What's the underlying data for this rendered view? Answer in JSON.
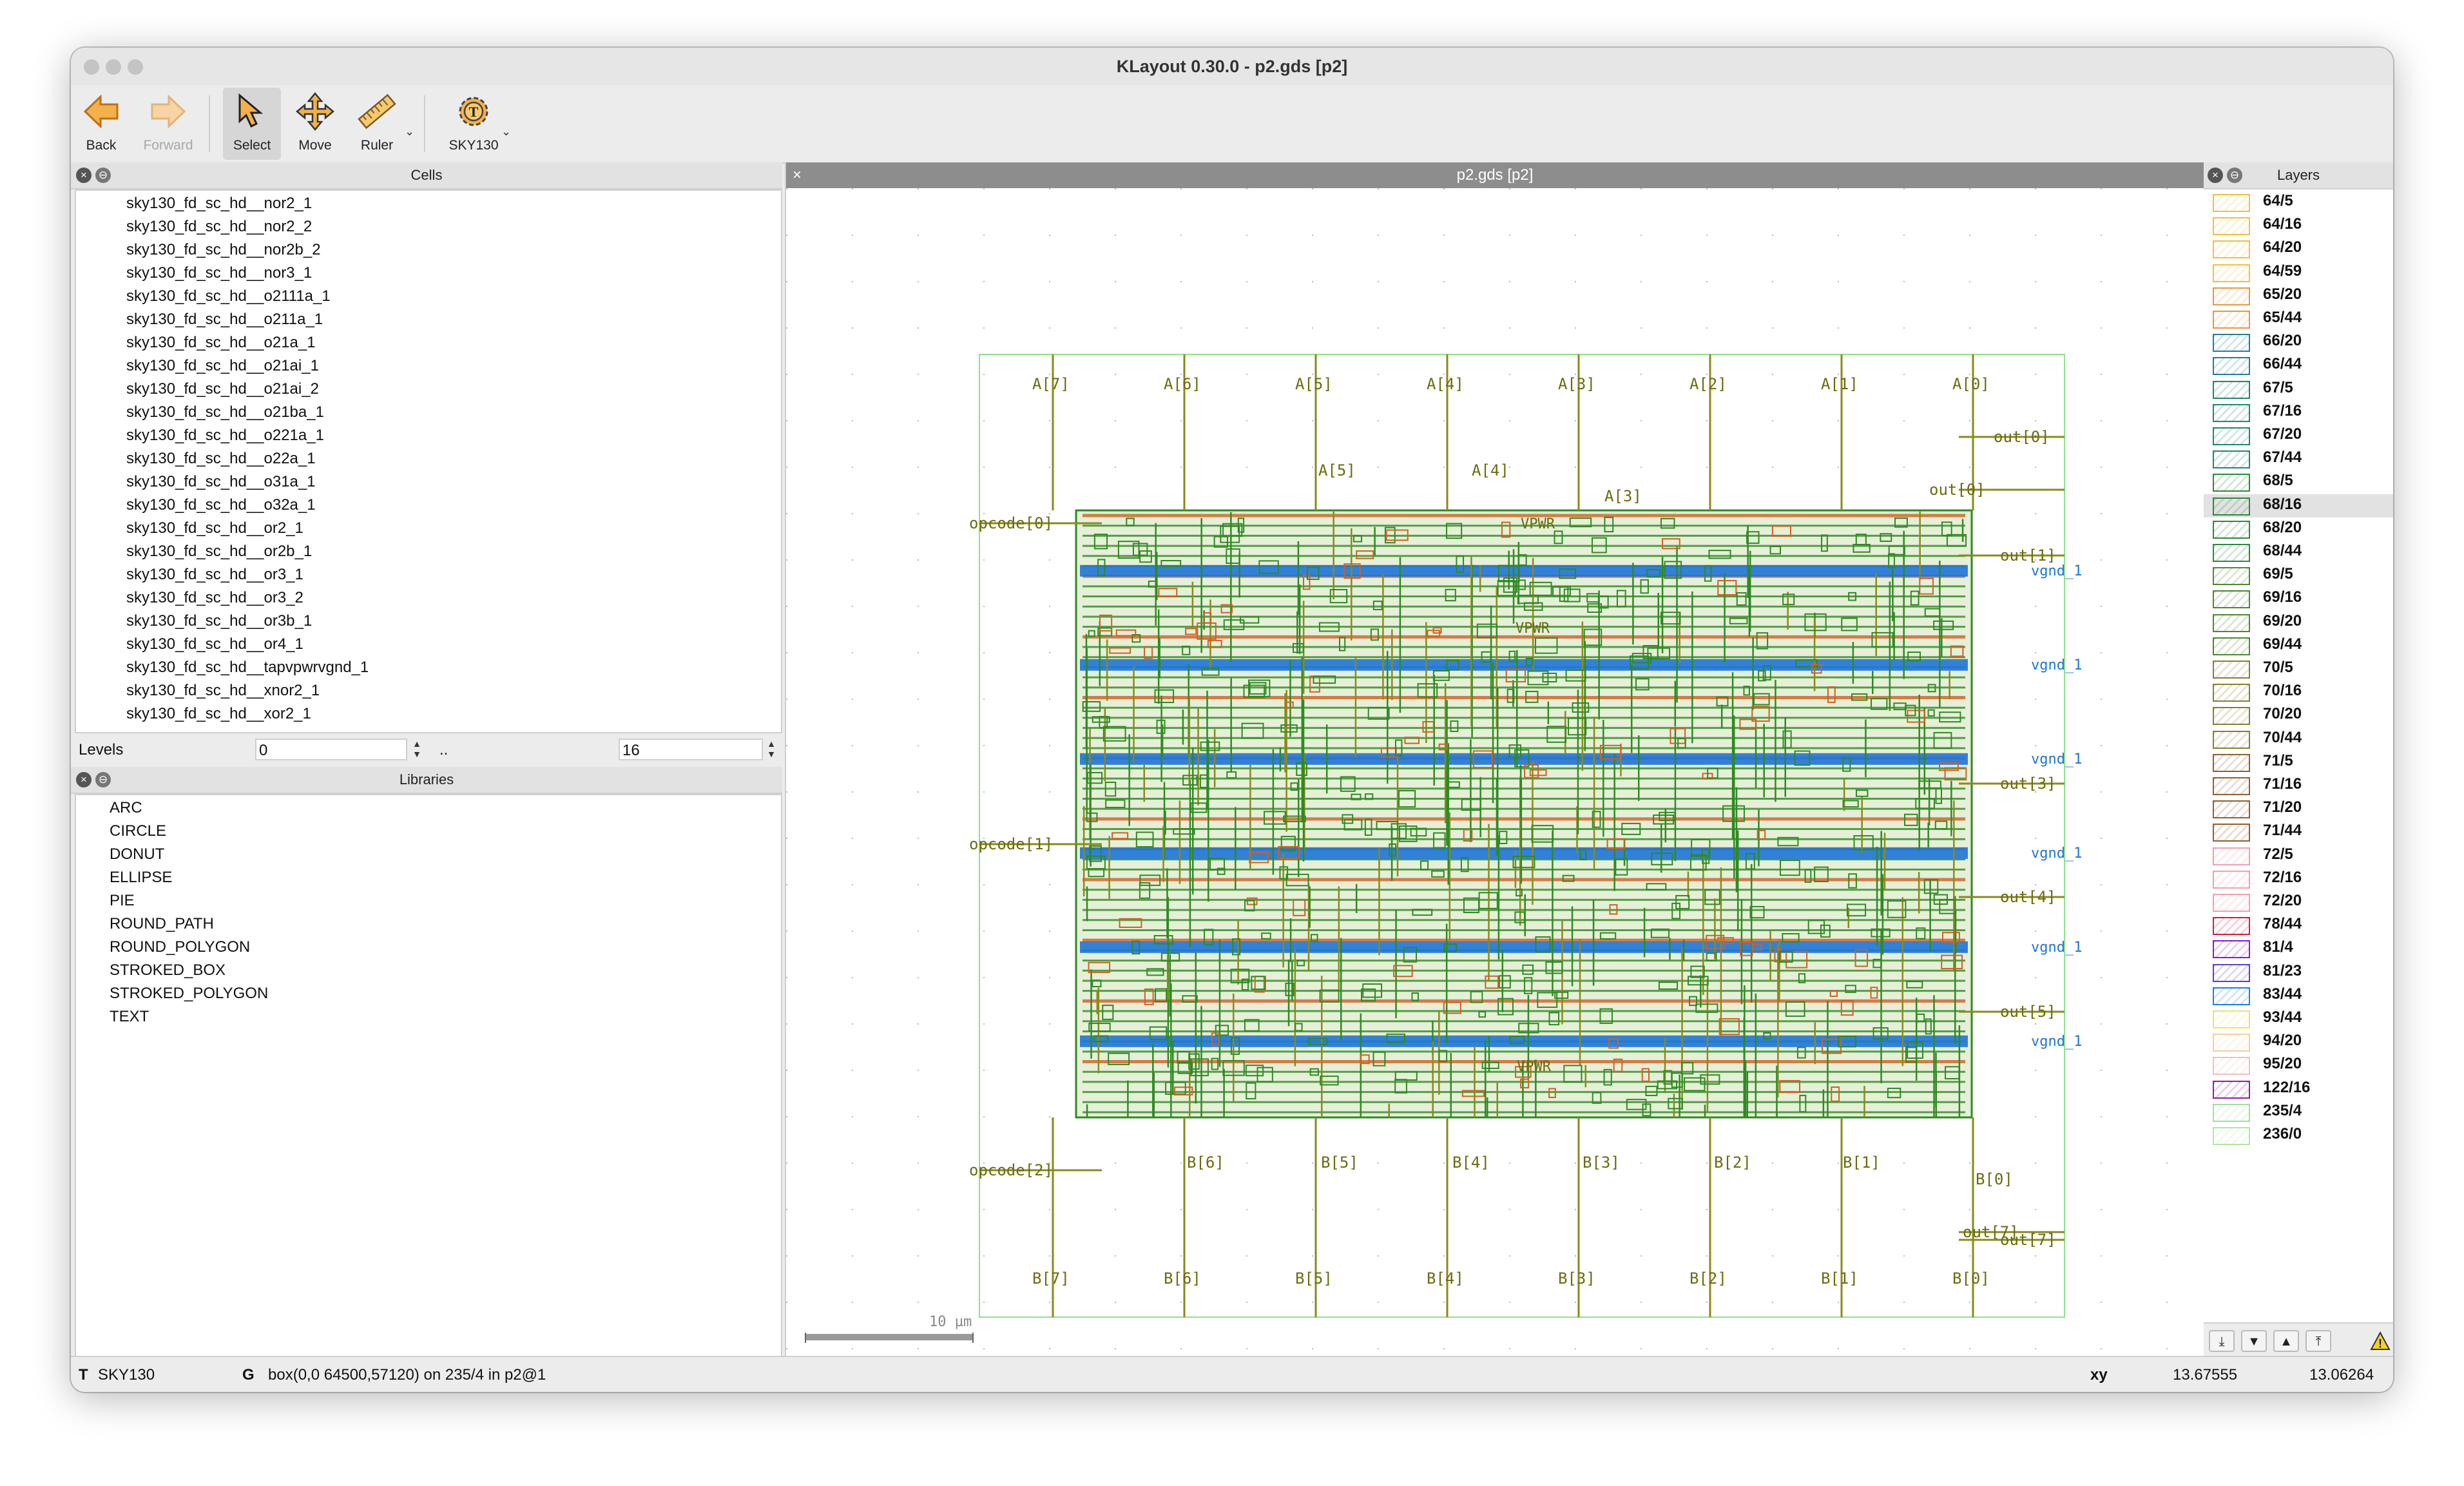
{
  "window": {
    "title": "KLayout 0.30.0 - p2.gds [p2]"
  },
  "toolbar": {
    "back_label": "Back",
    "forward_label": "Forward",
    "select_label": "Select",
    "move_label": "Move",
    "ruler_label": "Ruler",
    "tech_label": "SKY130"
  },
  "cells_panel": {
    "title": "Cells",
    "items": [
      "sky130_fd_sc_hd__nor2_1",
      "sky130_fd_sc_hd__nor2_2",
      "sky130_fd_sc_hd__nor2b_2",
      "sky130_fd_sc_hd__nor3_1",
      "sky130_fd_sc_hd__o2111a_1",
      "sky130_fd_sc_hd__o211a_1",
      "sky130_fd_sc_hd__o21a_1",
      "sky130_fd_sc_hd__o21ai_1",
      "sky130_fd_sc_hd__o21ai_2",
      "sky130_fd_sc_hd__o21ba_1",
      "sky130_fd_sc_hd__o221a_1",
      "sky130_fd_sc_hd__o22a_1",
      "sky130_fd_sc_hd__o31a_1",
      "sky130_fd_sc_hd__o32a_1",
      "sky130_fd_sc_hd__or2_1",
      "sky130_fd_sc_hd__or2b_1",
      "sky130_fd_sc_hd__or3_1",
      "sky130_fd_sc_hd__or3_2",
      "sky130_fd_sc_hd__or3b_1",
      "sky130_fd_sc_hd__or4_1",
      "sky130_fd_sc_hd__tapvpwrvgnd_1",
      "sky130_fd_sc_hd__xnor2_1",
      "sky130_fd_sc_hd__xor2_1"
    ],
    "levels_label": "Levels",
    "levels_min": "0",
    "levels_sep": "..",
    "levels_max": "16"
  },
  "libraries_panel": {
    "title": "Libraries",
    "items": [
      "ARC",
      "CIRCLE",
      "DONUT",
      "ELLIPSE",
      "PIE",
      "ROUND_PATH",
      "ROUND_POLYGON",
      "STROKED_BOX",
      "STROKED_POLYGON",
      "TEXT"
    ]
  },
  "canvas": {
    "tab_title": "p2.gds [p2]",
    "scale_label": "10 µm",
    "pins_top": [
      "A[7]",
      "A[6]",
      "A[5]",
      "A[4]",
      "A[3]",
      "A[2]",
      "A[1]",
      "A[0]"
    ],
    "pins_bottom": [
      "B[7]",
      "B[6]",
      "B[5]",
      "B[4]",
      "B[3]",
      "B[2]",
      "B[1]",
      "B[0]"
    ],
    "inner_labels_top": [
      "A[5]",
      "A[4]",
      "A[3]"
    ],
    "inner_labels_bottom": [
      "B[6]",
      "B[5]",
      "B[4]",
      "B[3]",
      "B[2]",
      "B[1]",
      "B[0]"
    ],
    "pins_left": [
      "opcode[0]",
      "opcode[1]",
      "opcode[2]"
    ],
    "pins_right": [
      "out[0]",
      "out[0]",
      "out[1]",
      "out[3]",
      "out[4]",
      "out[5]",
      "out[7]",
      "out[7]"
    ],
    "power_labels": [
      "VPWR",
      "VPWR",
      "VPWR"
    ],
    "net_label": "vgnd_1"
  },
  "layers_panel": {
    "title": "Layers",
    "selected": "68/16",
    "items": [
      {
        "name": "64/5",
        "color": "#f0c040"
      },
      {
        "name": "64/16",
        "color": "#f0c040"
      },
      {
        "name": "64/20",
        "color": "#f0c040"
      },
      {
        "name": "64/59",
        "color": "#f0c040"
      },
      {
        "name": "65/20",
        "color": "#e89840"
      },
      {
        "name": "65/44",
        "color": "#e89840"
      },
      {
        "name": "66/20",
        "color": "#2080a0"
      },
      {
        "name": "66/44",
        "color": "#2080a0"
      },
      {
        "name": "67/5",
        "color": "#208870"
      },
      {
        "name": "67/16",
        "color": "#208870"
      },
      {
        "name": "67/20",
        "color": "#208870"
      },
      {
        "name": "67/44",
        "color": "#208870"
      },
      {
        "name": "68/5",
        "color": "#2c8a3c"
      },
      {
        "name": "68/16",
        "color": "#2c8a3c"
      },
      {
        "name": "68/20",
        "color": "#2c8a3c"
      },
      {
        "name": "68/44",
        "color": "#2c8a3c"
      },
      {
        "name": "69/5",
        "color": "#508830"
      },
      {
        "name": "69/16",
        "color": "#508830"
      },
      {
        "name": "69/20",
        "color": "#508830"
      },
      {
        "name": "69/44",
        "color": "#508830"
      },
      {
        "name": "70/5",
        "color": "#888030"
      },
      {
        "name": "70/16",
        "color": "#888030"
      },
      {
        "name": "70/20",
        "color": "#888030"
      },
      {
        "name": "70/44",
        "color": "#888030"
      },
      {
        "name": "71/5",
        "color": "#906030"
      },
      {
        "name": "71/16",
        "color": "#906030"
      },
      {
        "name": "71/20",
        "color": "#906030"
      },
      {
        "name": "71/44",
        "color": "#906030"
      },
      {
        "name": "72/5",
        "color": "#f0a0b0"
      },
      {
        "name": "72/16",
        "color": "#f0a0b0"
      },
      {
        "name": "72/20",
        "color": "#f0a0b0"
      },
      {
        "name": "78/44",
        "color": "#d02040"
      },
      {
        "name": "81/4",
        "color": "#8020d0"
      },
      {
        "name": "81/23",
        "color": "#6040c0"
      },
      {
        "name": "83/44",
        "color": "#2080e0"
      },
      {
        "name": "93/44",
        "color": "#f0e070"
      },
      {
        "name": "94/20",
        "color": "#f0d0a0"
      },
      {
        "name": "95/20",
        "color": "#f0c0c0"
      },
      {
        "name": "122/16",
        "color": "#9020a0"
      },
      {
        "name": "235/4",
        "color": "#a0e0a0"
      },
      {
        "name": "236/0",
        "color": "#b0e8a0"
      }
    ]
  },
  "status": {
    "tech_prefix": "T",
    "tech": "SKY130",
    "grid_prefix": "G",
    "message": "box(0,0 64500,57120) on 235/4 in p2@1",
    "xy_label": "xy",
    "x": "13.67555",
    "y": "13.06264"
  },
  "colors": {
    "route_green": "#2f8a22",
    "route_olive": "#8a8a1a",
    "met_orange": "#d06020",
    "met_blue": "#1e74d8",
    "boundary": "#90e090"
  }
}
